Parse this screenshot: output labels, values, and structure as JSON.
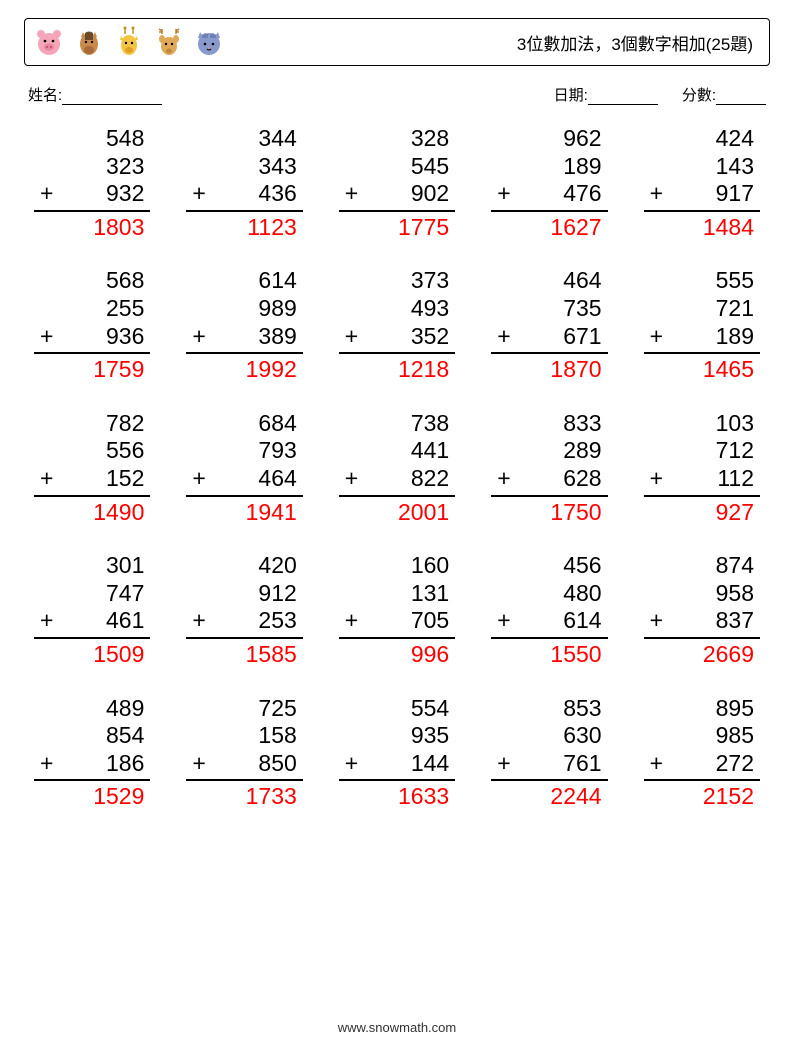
{
  "header": {
    "title": "3位數加法，3個數字相加(25題)",
    "icon_colors": {
      "pig": "#f4a6b8",
      "horse": "#c88a4a",
      "giraffe": "#f4c542",
      "deer": "#e0a958",
      "cat": "#8899cc"
    }
  },
  "info": {
    "name_label": "姓名:",
    "date_label": "日期:",
    "score_label": "分數:",
    "name_blank_width": 100,
    "date_blank_width": 70,
    "score_blank_width": 50
  },
  "style": {
    "problem_fontsize": 23,
    "answer_color": "#ff0000",
    "text_color": "#000000",
    "background_color": "#ffffff",
    "columns": 5,
    "rows": 5
  },
  "problems": [
    {
      "a": 548,
      "b": 323,
      "c": 932,
      "ans": 1803
    },
    {
      "a": 344,
      "b": 343,
      "c": 436,
      "ans": 1123
    },
    {
      "a": 328,
      "b": 545,
      "c": 902,
      "ans": 1775
    },
    {
      "a": 962,
      "b": 189,
      "c": 476,
      "ans": 1627
    },
    {
      "a": 424,
      "b": 143,
      "c": 917,
      "ans": 1484
    },
    {
      "a": 568,
      "b": 255,
      "c": 936,
      "ans": 1759
    },
    {
      "a": 614,
      "b": 989,
      "c": 389,
      "ans": 1992
    },
    {
      "a": 373,
      "b": 493,
      "c": 352,
      "ans": 1218
    },
    {
      "a": 464,
      "b": 735,
      "c": 671,
      "ans": 1870
    },
    {
      "a": 555,
      "b": 721,
      "c": 189,
      "ans": 1465
    },
    {
      "a": 782,
      "b": 556,
      "c": 152,
      "ans": 1490
    },
    {
      "a": 684,
      "b": 793,
      "c": 464,
      "ans": 1941
    },
    {
      "a": 738,
      "b": 441,
      "c": 822,
      "ans": 2001
    },
    {
      "a": 833,
      "b": 289,
      "c": 628,
      "ans": 1750
    },
    {
      "a": 103,
      "b": 712,
      "c": 112,
      "ans": 927
    },
    {
      "a": 301,
      "b": 747,
      "c": 461,
      "ans": 1509
    },
    {
      "a": 420,
      "b": 912,
      "c": 253,
      "ans": 1585
    },
    {
      "a": 160,
      "b": 131,
      "c": 705,
      "ans": 996
    },
    {
      "a": 456,
      "b": 480,
      "c": 614,
      "ans": 1550
    },
    {
      "a": 874,
      "b": 958,
      "c": 837,
      "ans": 2669
    },
    {
      "a": 489,
      "b": 854,
      "c": 186,
      "ans": 1529
    },
    {
      "a": 725,
      "b": 158,
      "c": 850,
      "ans": 1733
    },
    {
      "a": 554,
      "b": 935,
      "c": 144,
      "ans": 1633
    },
    {
      "a": 853,
      "b": 630,
      "c": 761,
      "ans": 2244
    },
    {
      "a": 895,
      "b": 985,
      "c": 272,
      "ans": 2152
    }
  ],
  "footer": {
    "text": "www.snowmath.com"
  }
}
